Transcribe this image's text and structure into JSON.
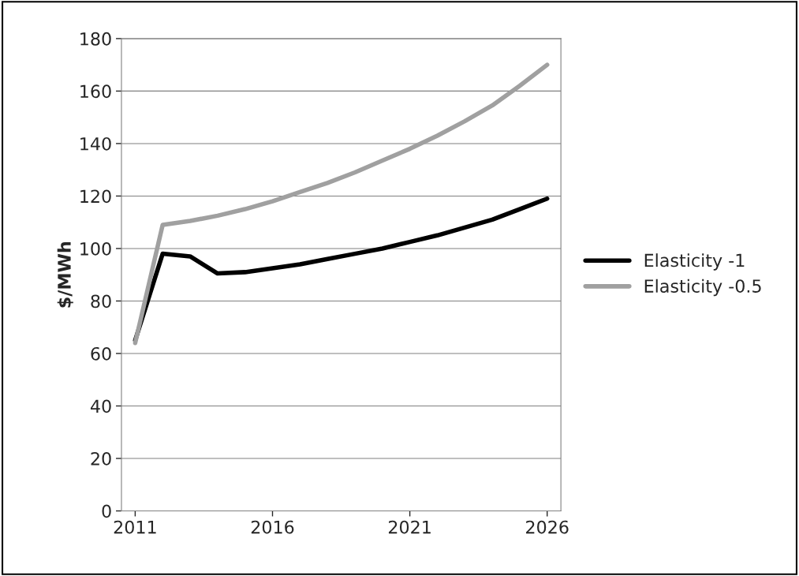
{
  "chart_data": {
    "type": "line",
    "ylabel": "$/MWh",
    "x": [
      2011,
      2012,
      2013,
      2014,
      2015,
      2016,
      2017,
      2018,
      2019,
      2020,
      2021,
      2022,
      2023,
      2024,
      2025,
      2026
    ],
    "series": [
      {
        "name": "Elasticity -1",
        "color": "#000000",
        "values": [
          65,
          98,
          97,
          90.5,
          91,
          92.5,
          94,
          96,
          98,
          100,
          102.5,
          105,
          108,
          111,
          115,
          119
        ]
      },
      {
        "name": "Elasticity -0.5",
        "color": "#a0a0a0",
        "values": [
          64,
          109,
          110.5,
          112.5,
          115,
          118,
          121.5,
          125,
          129,
          133.5,
          138,
          143,
          148.5,
          154.5,
          162,
          170
        ]
      }
    ],
    "xlim": [
      2010.5,
      2026.5
    ],
    "xticks": [
      2011,
      2016,
      2021,
      2026
    ],
    "ylim": [
      0,
      180
    ],
    "yticks": [
      0,
      20,
      40,
      60,
      80,
      100,
      120,
      140,
      160,
      180
    ],
    "grid": "y",
    "legend": "right",
    "marker": "none",
    "line_style": "solid"
  }
}
